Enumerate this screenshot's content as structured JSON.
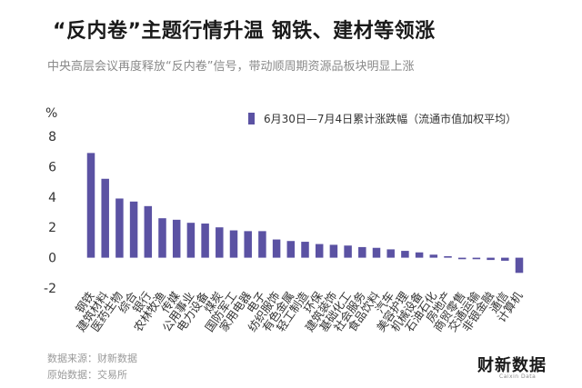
{
  "header": {
    "title": "“反内卷”主题行情升温  钢铁、建材等领涨",
    "subtitle": "中央高层会议再度释放“反内卷”信号，带动顺周期资源品板块明显上涨"
  },
  "footer": {
    "source": "数据来源：财新数据",
    "raw_source": "原始数据：交易所",
    "logo_text": "财新数据",
    "logo_sub": "Caixin Data"
  },
  "colors": {
    "bar": "#5b52a3",
    "axis_text": "#333333",
    "footer_text": "#9a9a9a"
  },
  "chart_data": {
    "type": "bar",
    "unit_label": "%",
    "legend": "6月30日—7月4日累计涨跌幅（流通市值加权平均）",
    "ylim": [
      -2,
      8
    ],
    "yticks": [
      -2,
      0,
      2,
      4,
      6,
      8
    ],
    "grid": false,
    "categories": [
      "钢铁",
      "建筑材料",
      "医药生物",
      "综合",
      "银行",
      "农林牧渔",
      "传媒",
      "公用事业",
      "电力设备",
      "煤炭",
      "国防军工",
      "家用电器",
      "电子",
      "纺织服饰",
      "有色金属",
      "轻工制造",
      "环保",
      "建筑装饰",
      "基础化工",
      "社会服务",
      "食品饮料",
      "汽车",
      "美容护理",
      "机械设备",
      "石油石化",
      "房地产",
      "商贸零售",
      "交通运输",
      "非银金融",
      "通信",
      "计算机"
    ],
    "values": [
      6.9,
      5.2,
      3.9,
      3.7,
      3.4,
      2.6,
      2.5,
      2.3,
      2.25,
      2.0,
      1.8,
      1.75,
      1.75,
      1.2,
      1.1,
      1.05,
      0.9,
      0.85,
      0.8,
      0.7,
      0.65,
      0.55,
      0.45,
      0.35,
      0.2,
      0.1,
      -0.1,
      -0.1,
      -0.15,
      -0.2,
      -1.0
    ]
  }
}
